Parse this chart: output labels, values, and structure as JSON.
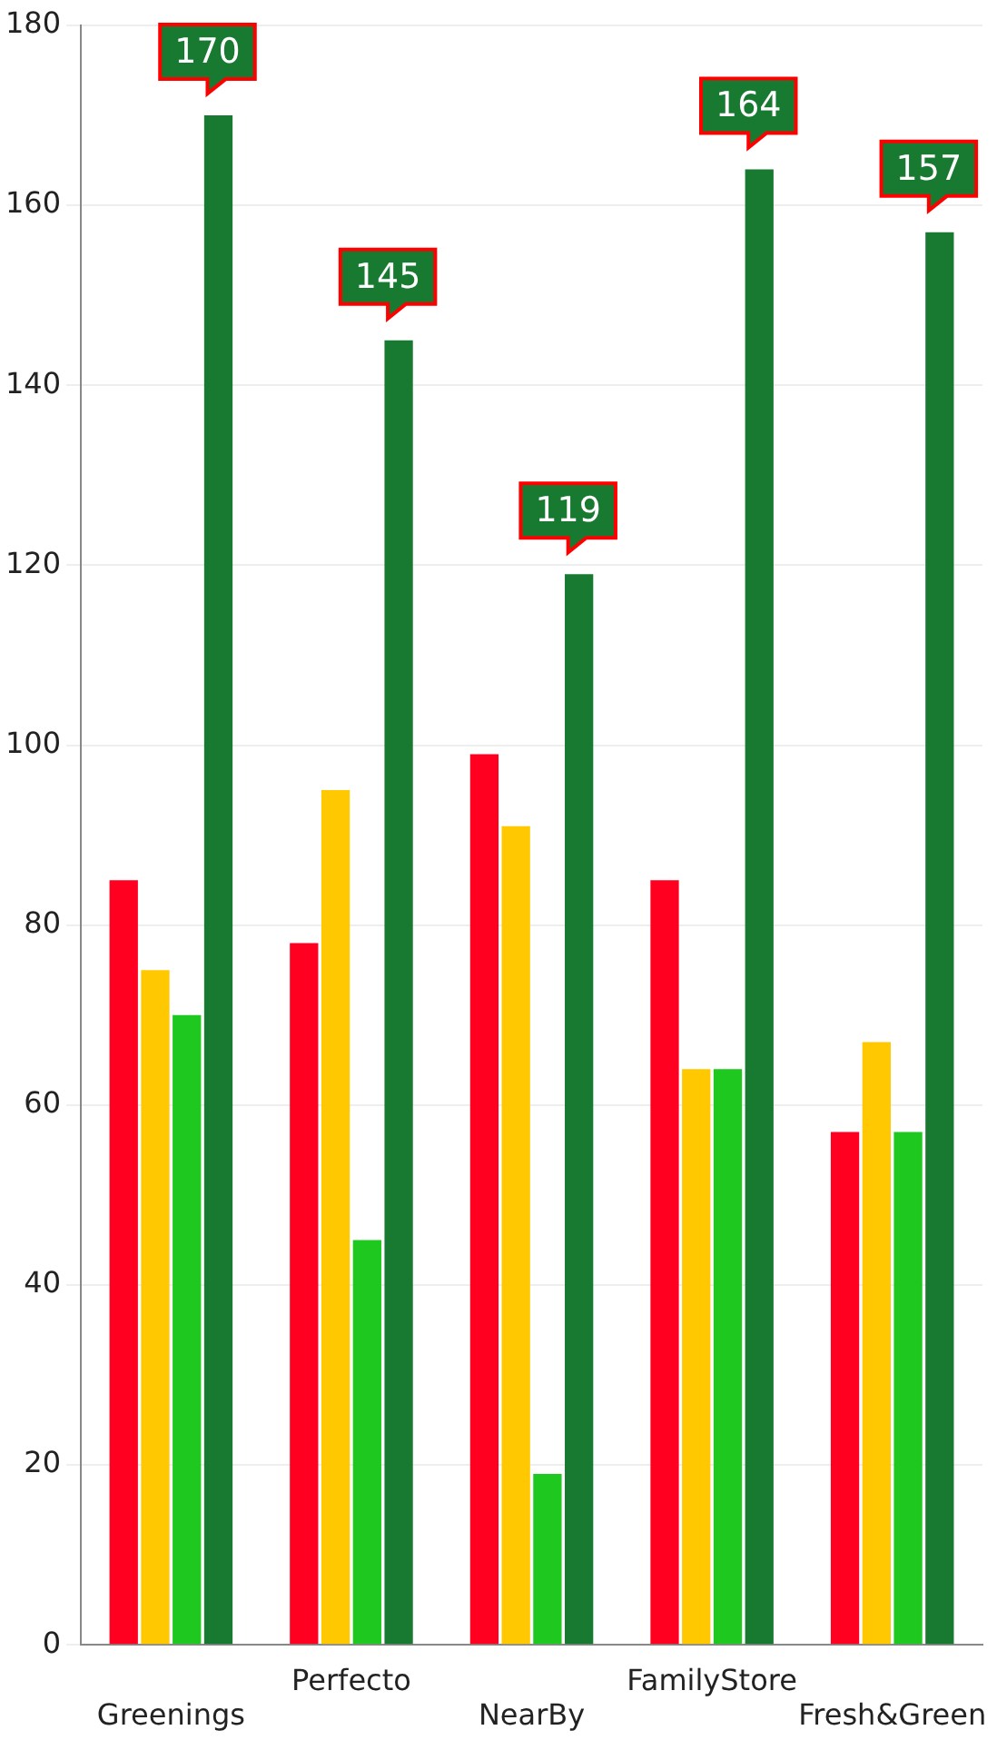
{
  "chart_data": {
    "type": "bar",
    "categories": [
      "Greenings",
      "Perfecto",
      "NearBy",
      "FamilyStore",
      "Fresh&Green"
    ],
    "series": [
      {
        "color": "#ff0020",
        "values": [
          85,
          78,
          99,
          85,
          57
        ]
      },
      {
        "color": "#ffc800",
        "values": [
          75,
          95,
          91,
          64,
          67
        ]
      },
      {
        "color": "#1ec81e",
        "values": [
          70,
          45,
          19,
          64,
          57
        ]
      },
      {
        "color": "#187a30",
        "values": [
          170,
          145,
          119,
          164,
          157
        ],
        "value_labels": [
          "170",
          "145",
          "119",
          "164",
          "157"
        ]
      }
    ],
    "ylim": [
      0,
      180
    ],
    "yticks": [
      0,
      20,
      40,
      60,
      80,
      100,
      120,
      140,
      160,
      180
    ],
    "grid": "y",
    "legend": false
  }
}
